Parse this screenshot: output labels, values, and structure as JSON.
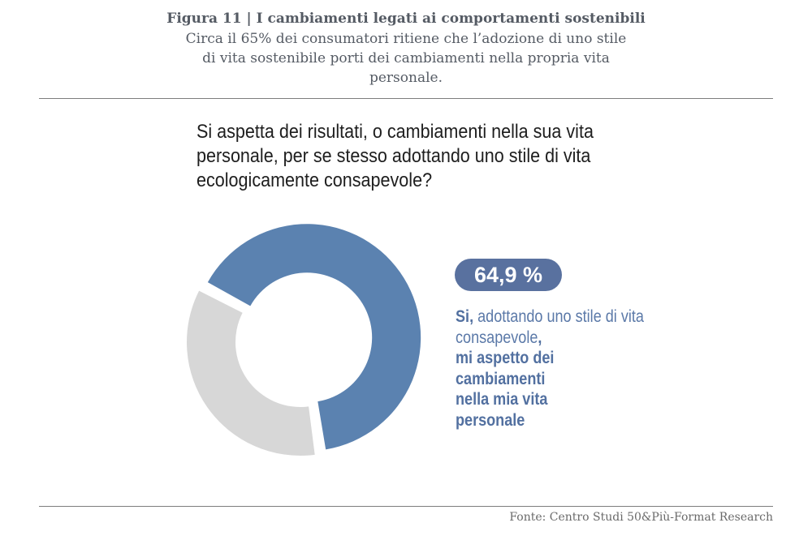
{
  "header": {
    "figure_title": "Figura 11 | I cambiamenti legati ai comportamenti sostenibili",
    "subtitle": "Circa il 65% dei consumatori ritiene che l’adozione di uno stile di vita sostenibile porti dei cambiamenti nella propria vita personale."
  },
  "question": "Si aspetta dei risultati, o cambiamenti nella sua vita personale, per se stesso adottando uno stile di vita ecologicamente consapevole?",
  "highlight": {
    "percent_label": "64,9 %",
    "answer_si": "Si,",
    "answer_middle": " adottando uno stile di vita consapevole",
    "answer_comma": ",",
    "answer_bold_line1": "mi aspetto dei",
    "answer_bold_line2": "cambiamenti",
    "answer_bold_line3": "nella mia vita",
    "answer_bold_line4": "personale"
  },
  "source": "Fonte: Centro Studi 50&Più-Format Research",
  "colors": {
    "si": "#5b82b0",
    "other": "#d7d7d7",
    "badge": "#59719f",
    "text_accent": "#5b79a8"
  },
  "chart_data": {
    "type": "pie",
    "donut": true,
    "categories": [
      "Si",
      ""
    ],
    "values": [
      64.9,
      35.1
    ],
    "title": "",
    "exploded": "Si"
  }
}
